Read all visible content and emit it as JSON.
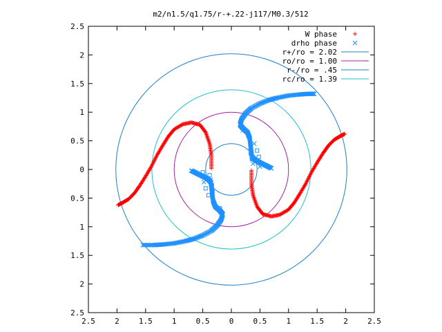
{
  "chart_data": {
    "type": "scatter",
    "title": "m2/n1.5/q1.75/r-+.22-j117/M0.3/512",
    "xlabel": "",
    "ylabel": "",
    "xlim": [
      -2.5,
      2.5
    ],
    "ylim": [
      -2.5,
      2.5
    ],
    "x_ticks": [
      "2.5",
      "2",
      "1.5",
      "1",
      "0.5",
      "0",
      "0.5",
      "1",
      "1.5",
      "2",
      "2.5"
    ],
    "y_ticks": [
      "2.5",
      "2",
      "1.5",
      "1",
      "0.5",
      "0",
      "0.5",
      "1",
      "1.5",
      "2",
      "2.5"
    ],
    "grid": false,
    "legend_position": "top-right",
    "series": [
      {
        "name": "W phase",
        "marker": "plus",
        "color": "#ff0000",
        "arms": [
          [
            [
              -0.35,
              0.02
            ],
            [
              -0.35,
              0.25
            ],
            [
              -0.38,
              0.45
            ],
            [
              -0.45,
              0.65
            ],
            [
              -0.55,
              0.78
            ],
            [
              -0.7,
              0.82
            ],
            [
              -0.85,
              0.79
            ],
            [
              -1.0,
              0.7
            ],
            [
              -1.1,
              0.58
            ],
            [
              -1.2,
              0.42
            ],
            [
              -1.3,
              0.25
            ],
            [
              -1.4,
              0.05
            ],
            [
              -1.5,
              -0.12
            ],
            [
              -1.6,
              -0.28
            ],
            [
              -1.7,
              -0.42
            ],
            [
              -1.8,
              -0.52
            ],
            [
              -1.9,
              -0.58
            ],
            [
              -1.98,
              -0.62
            ]
          ],
          [
            [
              0.35,
              -0.02
            ],
            [
              0.35,
              -0.25
            ],
            [
              0.38,
              -0.45
            ],
            [
              0.45,
              -0.65
            ],
            [
              0.55,
              -0.78
            ],
            [
              0.7,
              -0.82
            ],
            [
              0.85,
              -0.79
            ],
            [
              1.0,
              -0.7
            ],
            [
              1.1,
              -0.58
            ],
            [
              1.2,
              -0.42
            ],
            [
              1.3,
              -0.25
            ],
            [
              1.4,
              -0.05
            ],
            [
              1.5,
              0.12
            ],
            [
              1.6,
              0.28
            ],
            [
              1.7,
              0.42
            ],
            [
              1.8,
              0.52
            ],
            [
              1.9,
              0.58
            ],
            [
              1.98,
              0.62
            ]
          ]
        ]
      },
      {
        "name": "drho phase",
        "marker": "cross",
        "color": "#1e90ff",
        "arms": [
          [
            [
              -0.7,
              -0.02
            ],
            [
              -0.6,
              -0.07
            ],
            [
              -0.5,
              -0.12
            ],
            [
              -0.42,
              -0.16
            ],
            [
              -0.36,
              -0.22
            ],
            [
              -0.34,
              -0.38
            ],
            [
              -0.32,
              -0.55
            ],
            [
              -0.28,
              -0.65
            ],
            [
              -0.2,
              -0.72
            ],
            [
              -0.15,
              -0.78
            ],
            [
              -0.18,
              -0.88
            ],
            [
              -0.25,
              -0.98
            ],
            [
              -0.35,
              -1.07
            ],
            [
              -0.5,
              -1.15
            ],
            [
              -0.65,
              -1.21
            ],
            [
              -0.8,
              -1.25
            ],
            [
              -1.0,
              -1.29
            ],
            [
              -1.2,
              -1.31
            ],
            [
              -1.35,
              -1.32
            ],
            [
              -1.55,
              -1.32
            ]
          ],
          [
            [
              0.7,
              0.02
            ],
            [
              0.6,
              0.07
            ],
            [
              0.5,
              0.12
            ],
            [
              0.42,
              0.16
            ],
            [
              0.36,
              0.22
            ],
            [
              0.34,
              0.38
            ],
            [
              0.32,
              0.55
            ],
            [
              0.28,
              0.65
            ],
            [
              0.2,
              0.72
            ],
            [
              0.15,
              0.78
            ],
            [
              0.18,
              0.88
            ],
            [
              0.25,
              0.98
            ],
            [
              0.35,
              1.07
            ],
            [
              0.5,
              1.15
            ],
            [
              0.65,
              1.21
            ],
            [
              0.8,
              1.25
            ],
            [
              1.0,
              1.29
            ],
            [
              1.2,
              1.31
            ],
            [
              1.35,
              1.32
            ],
            [
              1.45,
              1.32
            ]
          ]
        ],
        "scatter_points": [
          [
            0.2,
            0.68
          ],
          [
            0.26,
            0.66
          ],
          [
            0.32,
            0.55
          ],
          [
            0.4,
            0.45
          ],
          [
            0.45,
            0.33
          ],
          [
            0.48,
            0.22
          ],
          [
            0.5,
            0.05
          ],
          [
            -0.2,
            -0.68
          ],
          [
            -0.26,
            -0.66
          ],
          [
            -0.32,
            -0.55
          ],
          [
            -0.4,
            -0.45
          ],
          [
            -0.45,
            -0.33
          ],
          [
            -0.48,
            -0.22
          ],
          [
            -0.5,
            -0.05
          ],
          [
            -0.38,
            -0.1
          ],
          [
            -0.36,
            -0.18
          ],
          [
            -0.34,
            -0.28
          ],
          [
            -0.33,
            -0.38
          ],
          [
            0.38,
            0.1
          ],
          [
            0.36,
            0.18
          ],
          [
            0.34,
            0.28
          ],
          [
            0.33,
            0.38
          ]
        ]
      }
    ],
    "circles": [
      {
        "name": "r+/ro = 2.02",
        "radius": 2.02,
        "color": "#1e7fc8"
      },
      {
        "name": "ro/ro = 1.00",
        "radius": 1.0,
        "color": "#a020a0"
      },
      {
        "name": "r-/ro = .45",
        "radius": 0.45,
        "color": "#1e7fc8"
      },
      {
        "name": "rc/ro = 1.39",
        "radius": 1.39,
        "color": "#20c0d0"
      }
    ]
  }
}
